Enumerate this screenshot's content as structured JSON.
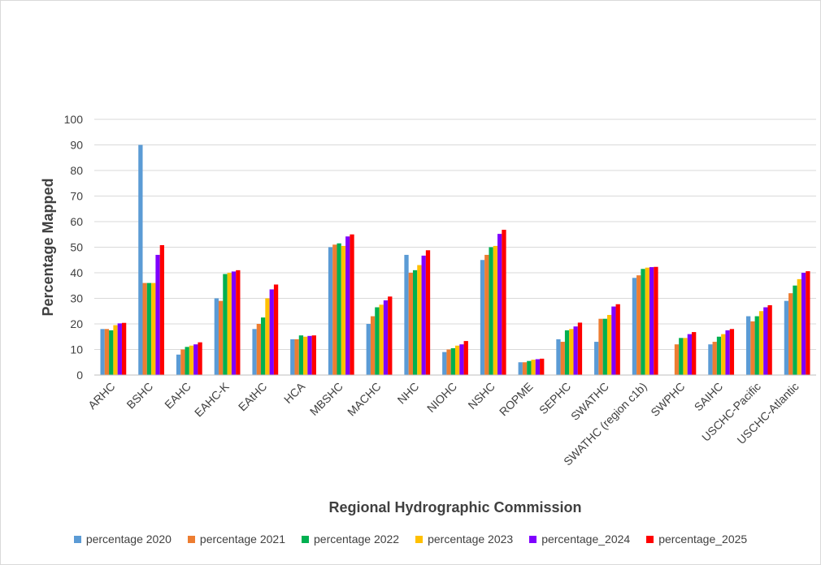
{
  "chart_data": {
    "type": "bar",
    "title": "",
    "xlabel": "Regional Hydrographic Commission",
    "ylabel": "Percentage Mapped",
    "ylim": [
      0,
      100
    ],
    "yticks": [
      0,
      10,
      20,
      30,
      40,
      50,
      60,
      70,
      80,
      90,
      100
    ],
    "grid": true,
    "legend_position": "bottom",
    "categories": [
      "ARHC",
      "BSHC",
      "EAHC",
      "EAHC-K",
      "EAtHC",
      "HCA",
      "MBSHC",
      "MACHC",
      "NHC",
      "NIOHC",
      "NSHC",
      "ROPME",
      "SEPHC",
      "SWATHC",
      "SWATHC (region c1b)",
      "SWPHC",
      "SAIHC",
      "USCHC-Pacific",
      "USCHC-Atlantic"
    ],
    "series": [
      {
        "name": "percentage 2020",
        "color": "#5b9bd5",
        "values": [
          18,
          90,
          8,
          30,
          18,
          14,
          50,
          20,
          47,
          9,
          45,
          5,
          14,
          13,
          38,
          null,
          12,
          23,
          29
        ]
      },
      {
        "name": "percentage 2021",
        "color": "#ed7d31",
        "values": [
          18,
          36,
          10,
          29,
          20,
          14,
          51,
          23,
          40,
          10,
          47,
          5,
          13,
          22,
          39,
          12,
          13,
          21,
          32
        ]
      },
      {
        "name": "percentage 2022",
        "color": "#00b050",
        "values": [
          17.5,
          36,
          11,
          39.5,
          22.5,
          15.5,
          51.5,
          26.5,
          41,
          10.5,
          50,
          5.5,
          17.5,
          22,
          41.5,
          14.5,
          15,
          23,
          35
        ]
      },
      {
        "name": "percentage 2023",
        "color": "#ffc000",
        "values": [
          19.5,
          36,
          11.5,
          40,
          30,
          15,
          50.5,
          27.5,
          43,
          11.5,
          50.5,
          6,
          18,
          23.5,
          42,
          14.5,
          16,
          25,
          37.5
        ]
      },
      {
        "name": "percentage_2024",
        "color": "#7f00ff",
        "values": [
          20.2,
          47,
          12,
          40.5,
          33.5,
          15.3,
          54.2,
          29.2,
          46.7,
          12,
          55.2,
          6.2,
          19,
          26.8,
          42.2,
          16,
          17.5,
          26.5,
          40
        ]
      },
      {
        "name": "percentage_2025",
        "color": "#ff0000",
        "values": [
          20.4,
          50.8,
          12.8,
          41,
          35.4,
          15.5,
          55,
          30.7,
          48.8,
          13.3,
          56.8,
          6.4,
          20.5,
          27.7,
          42.3,
          16.8,
          18,
          27.3,
          40.6
        ]
      }
    ]
  }
}
